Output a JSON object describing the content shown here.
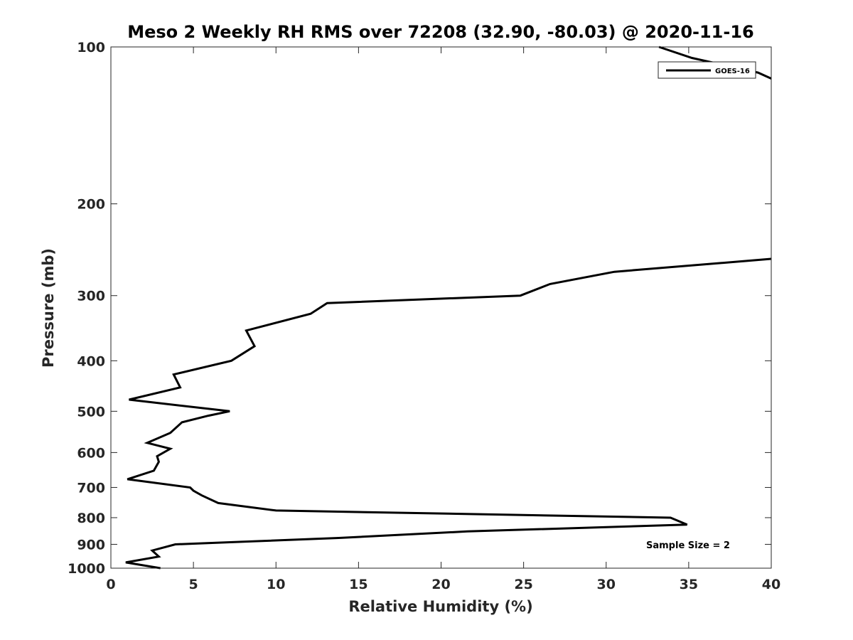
{
  "chart_data": {
    "type": "line",
    "title": "Meso 2 Weekly RH RMS over 72208 (32.90, -80.03) @ 2020-11-16",
    "xlabel": "Relative Humidity (%)",
    "ylabel": "Pressure (mb)",
    "xlim": [
      0,
      40
    ],
    "ylim": [
      100,
      1000
    ],
    "y_scale": "log",
    "y_reversed": true,
    "x_ticks": [
      0,
      5,
      10,
      15,
      20,
      25,
      30,
      35,
      40
    ],
    "y_ticks": [
      100,
      200,
      300,
      400,
      500,
      600,
      700,
      800,
      900,
      1000
    ],
    "grid": false,
    "legend": {
      "position": "top-right"
    },
    "annotation": "Sample Size = 2",
    "series": [
      {
        "name": "GOES-16",
        "color": "#000000",
        "points": [
          [
            3.0,
            1000
          ],
          [
            0.9,
            975
          ],
          [
            2.9,
            950
          ],
          [
            2.5,
            925
          ],
          [
            3.9,
            900
          ],
          [
            13.8,
            875
          ],
          [
            21.6,
            850
          ],
          [
            34.9,
            825
          ],
          [
            33.9,
            800
          ],
          [
            10.0,
            775
          ],
          [
            6.5,
            750
          ],
          [
            5.5,
            725
          ],
          [
            5.0,
            710
          ],
          [
            4.8,
            700
          ],
          [
            1.0,
            675
          ],
          [
            2.6,
            650
          ],
          [
            2.9,
            625
          ],
          [
            2.8,
            610
          ],
          [
            3.6,
            590
          ],
          [
            2.2,
            575
          ],
          [
            3.6,
            550
          ],
          [
            4.3,
            525
          ],
          [
            5.9,
            510
          ],
          [
            7.2,
            500
          ],
          [
            1.1,
            475
          ],
          [
            4.2,
            450
          ],
          [
            3.8,
            425
          ],
          [
            7.3,
            400
          ],
          [
            8.7,
            375
          ],
          [
            8.2,
            350
          ],
          [
            12.1,
            325
          ],
          [
            13.1,
            310
          ],
          [
            24.8,
            300
          ],
          [
            26.6,
            285
          ],
          [
            30.5,
            270
          ],
          [
            40.0,
            255
          ]
        ]
      },
      {
        "name": "",
        "color": "#000000",
        "points": [
          [
            33.2,
            100
          ],
          [
            35.2,
            105
          ],
          [
            39.2,
            112
          ],
          [
            40.0,
            115
          ]
        ]
      }
    ]
  }
}
